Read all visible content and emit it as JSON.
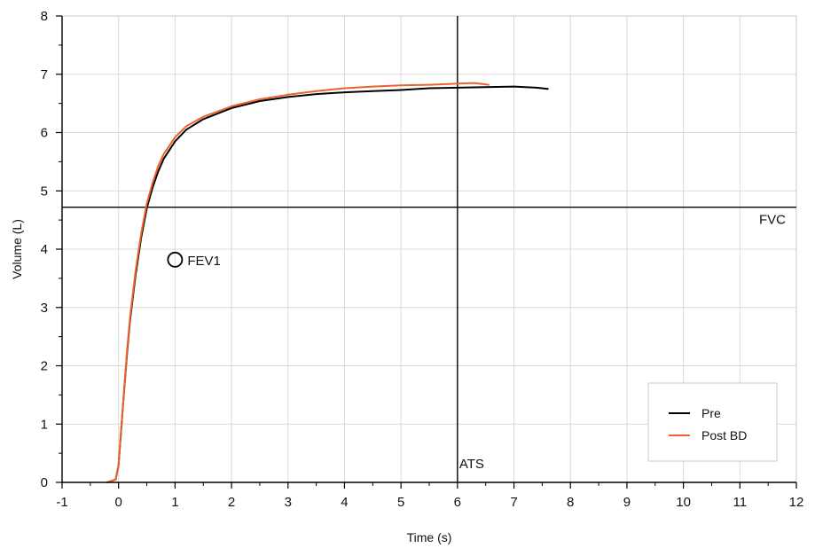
{
  "chart_data": {
    "type": "line",
    "title": "",
    "xlabel": "Time (s)",
    "ylabel": "Volume (L)",
    "xlim": [
      -1,
      12
    ],
    "ylim": [
      0,
      8
    ],
    "x_ticks": [
      -1,
      0,
      1,
      2,
      3,
      4,
      5,
      6,
      7,
      8,
      9,
      10,
      11,
      12
    ],
    "y_ticks": [
      0,
      1,
      2,
      3,
      4,
      5,
      6,
      7,
      8
    ],
    "grid": true,
    "legend_position": "bottom-right",
    "series": [
      {
        "name": "Pre",
        "color": "#000000",
        "points": [
          [
            -0.2,
            0.0
          ],
          [
            -0.05,
            0.05
          ],
          [
            0.0,
            0.3
          ],
          [
            0.05,
            0.95
          ],
          [
            0.1,
            1.6
          ],
          [
            0.15,
            2.2
          ],
          [
            0.2,
            2.75
          ],
          [
            0.3,
            3.55
          ],
          [
            0.4,
            4.2
          ],
          [
            0.5,
            4.7
          ],
          [
            0.6,
            5.05
          ],
          [
            0.7,
            5.33
          ],
          [
            0.8,
            5.55
          ],
          [
            1.0,
            5.85
          ],
          [
            1.2,
            6.05
          ],
          [
            1.5,
            6.23
          ],
          [
            2.0,
            6.42
          ],
          [
            2.5,
            6.54
          ],
          [
            3.0,
            6.61
          ],
          [
            3.5,
            6.66
          ],
          [
            4.0,
            6.69
          ],
          [
            4.5,
            6.71
          ],
          [
            5.0,
            6.73
          ],
          [
            5.5,
            6.76
          ],
          [
            6.0,
            6.77
          ],
          [
            6.5,
            6.78
          ],
          [
            7.0,
            6.79
          ],
          [
            7.4,
            6.77
          ],
          [
            7.6,
            6.75
          ]
        ]
      },
      {
        "name": "Post BD",
        "color": "#f0622d",
        "points": [
          [
            -0.2,
            0.0
          ],
          [
            -0.05,
            0.05
          ],
          [
            0.0,
            0.3
          ],
          [
            0.05,
            0.97
          ],
          [
            0.1,
            1.62
          ],
          [
            0.15,
            2.25
          ],
          [
            0.2,
            2.8
          ],
          [
            0.3,
            3.62
          ],
          [
            0.4,
            4.27
          ],
          [
            0.5,
            4.78
          ],
          [
            0.6,
            5.13
          ],
          [
            0.7,
            5.42
          ],
          [
            0.8,
            5.63
          ],
          [
            1.0,
            5.92
          ],
          [
            1.2,
            6.11
          ],
          [
            1.5,
            6.27
          ],
          [
            2.0,
            6.45
          ],
          [
            2.5,
            6.57
          ],
          [
            3.0,
            6.65
          ],
          [
            3.5,
            6.71
          ],
          [
            4.0,
            6.76
          ],
          [
            4.5,
            6.79
          ],
          [
            5.0,
            6.81
          ],
          [
            5.5,
            6.82
          ],
          [
            6.0,
            6.84
          ],
          [
            6.3,
            6.85
          ],
          [
            6.55,
            6.82
          ]
        ]
      }
    ],
    "reference_lines": {
      "fvc": {
        "label": "FVC",
        "y": 4.72
      },
      "ats": {
        "label": "ATS",
        "x": 6.0
      }
    },
    "markers": [
      {
        "label": "FEV1",
        "x": 1.0,
        "y": 3.82
      }
    ]
  }
}
